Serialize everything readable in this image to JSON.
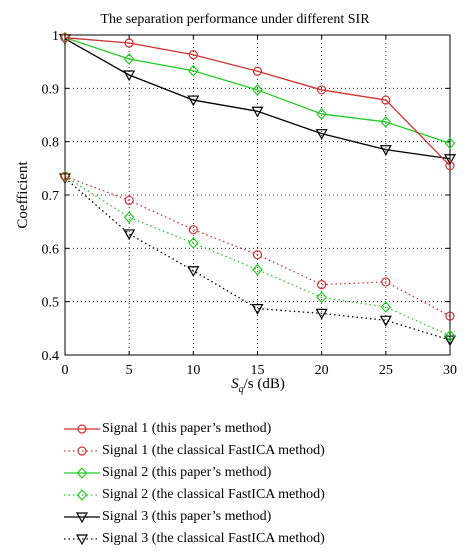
{
  "chart_data": {
    "type": "line",
    "title": "The separation performance under different SIR",
    "xlabel_main": "S",
    "xlabel_sub": "q",
    "xlabel_rest": "/s (dB)",
    "ylabel": "Coefficient",
    "xlim": [
      0,
      30
    ],
    "ylim": [
      0.4,
      1.0
    ],
    "xticks": [
      0,
      5,
      10,
      15,
      20,
      25,
      30
    ],
    "yticks": [
      0.4,
      0.5,
      0.6,
      0.7,
      0.8,
      0.9,
      1
    ],
    "xtick_labels": [
      "0",
      "5",
      "10",
      "15",
      "20",
      "25",
      "30"
    ],
    "ytick_labels": [
      "0.4",
      "0.5",
      "0.6",
      "0.7",
      "0.8",
      "0.9",
      "1"
    ],
    "grid": true,
    "legend_position": "bottom",
    "x": [
      0,
      5,
      10,
      15,
      20,
      25,
      30
    ],
    "series": [
      {
        "name": "Signal 1 (this paper’s method)",
        "values": [
          0.995,
          0.985,
          0.963,
          0.932,
          0.897,
          0.878,
          0.755
        ],
        "color": "#d03030",
        "marker": "circle",
        "dash": "solid"
      },
      {
        "name": "Signal 1 (the classical FastICA method)",
        "values": [
          0.735,
          0.69,
          0.635,
          0.588,
          0.532,
          0.537,
          0.473
        ],
        "color": "#d03030",
        "marker": "circle",
        "dash": "dotted"
      },
      {
        "name": "Signal 2 (this paper’s method)",
        "values": [
          0.995,
          0.955,
          0.933,
          0.897,
          0.852,
          0.837,
          0.797
        ],
        "color": "#22cc22",
        "marker": "diamond",
        "dash": "solid"
      },
      {
        "name": "Signal 2 (the classical FastICA method)",
        "values": [
          0.735,
          0.658,
          0.61,
          0.56,
          0.508,
          0.49,
          0.436
        ],
        "color": "#22cc22",
        "marker": "diamond",
        "dash": "dotted"
      },
      {
        "name": "Signal 3 (this paper’s method)",
        "values": [
          0.993,
          0.925,
          0.878,
          0.857,
          0.815,
          0.785,
          0.768
        ],
        "color": "#000000",
        "marker": "triangle-down",
        "dash": "solid"
      },
      {
        "name": "Signal 3 (the classical FastICA method)",
        "values": [
          0.732,
          0.627,
          0.558,
          0.487,
          0.478,
          0.465,
          0.428
        ],
        "color": "#000000",
        "marker": "triangle-down",
        "dash": "dotted"
      }
    ]
  }
}
